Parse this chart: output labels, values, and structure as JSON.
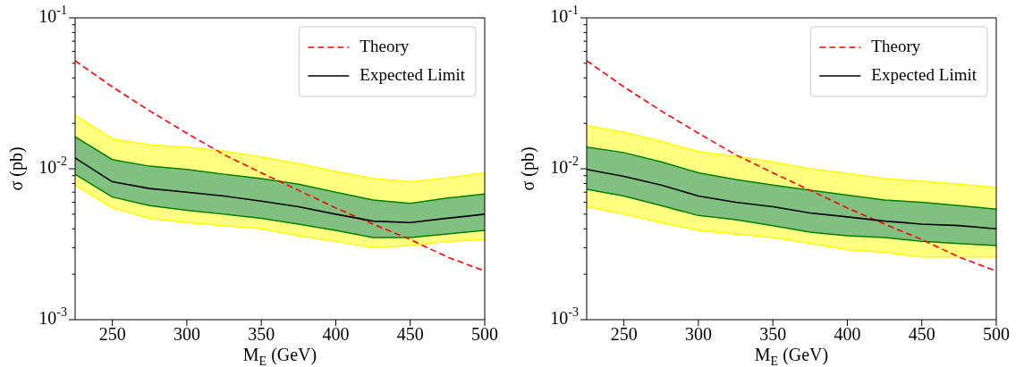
{
  "chart_data": [
    {
      "type": "line",
      "xlabel": "M$_{E}$ (GeV)",
      "ylabel": "σ (pb)",
      "log": "y",
      "legend": "top right",
      "x": [
        225,
        250,
        275,
        300,
        325,
        350,
        375,
        400,
        425,
        450,
        475,
        500
      ],
      "xlim": [
        225,
        500
      ],
      "xticks": [
        250,
        300,
        350,
        400,
        450,
        500
      ],
      "ylim": [
        0.001,
        0.1
      ],
      "yticks": [
        {
          "value": 0.001,
          "label": "10$^{-3}$"
        },
        {
          "value": 0.002,
          "label": null
        },
        {
          "value": 0.003,
          "label": null
        },
        {
          "value": 0.004,
          "label": null
        },
        {
          "value": 0.005,
          "label": null
        },
        {
          "value": 0.006,
          "label": null
        },
        {
          "value": 0.007,
          "label": null
        },
        {
          "value": 0.008,
          "label": null
        },
        {
          "value": 0.009,
          "label": null
        },
        {
          "value": 0.01,
          "label": "10$^{-2}$"
        },
        {
          "value": 0.02,
          "label": null
        },
        {
          "value": 0.03,
          "label": null
        },
        {
          "value": 0.04,
          "label": null
        },
        {
          "value": 0.05,
          "label": null
        },
        {
          "value": 0.06,
          "label": null
        },
        {
          "value": 0.07,
          "label": null
        },
        {
          "value": 0.08,
          "label": null
        },
        {
          "value": 0.09,
          "label": null
        },
        {
          "value": 0.1,
          "label": "10$^{-1}$"
        }
      ],
      "series": [
        {
          "type": "area",
          "color": "#ffff00",
          "values": [
            0.0228,
            0.0158,
            0.0144,
            0.0139,
            0.0131,
            0.012,
            0.0108,
            0.0096,
            0.0086,
            0.0082,
            0.0087,
            0.0094
          ]
        },
        {
          "type": "line",
          "color": "#ffff00",
          "values": [
            0.0078,
            0.0055,
            0.0047,
            0.0044,
            0.0042,
            0.004,
            0.0036,
            0.0033,
            0.003,
            0.0031,
            0.0033,
            0.0034
          ]
        },
        {
          "type": "area",
          "color": "#008000",
          "values": [
            0.0163,
            0.0115,
            0.0104,
            0.0099,
            0.0092,
            0.0086,
            0.0079,
            0.007,
            0.0062,
            0.0059,
            0.0064,
            0.0068
          ]
        },
        {
          "type": "line",
          "color": "#008000",
          "values": [
            0.0092,
            0.0065,
            0.0057,
            0.0053,
            0.005,
            0.0047,
            0.0043,
            0.0039,
            0.0035,
            0.0035,
            0.0037,
            0.0039
          ]
        },
        {
          "type": "line",
          "name": "Theory",
          "color": "#ff0000",
          "line_style": "dashed",
          "values": [
            0.052,
            0.0349,
            0.0242,
            0.0172,
            0.0124,
            0.0094,
            0.0072,
            0.0055,
            0.0043,
            0.0034,
            0.0026,
            0.0021
          ]
        },
        {
          "type": "line",
          "name": "Expected Limit",
          "color": "#000000",
          "line_style": "solid",
          "values": [
            0.0118,
            0.0082,
            0.0074,
            0.007,
            0.0066,
            0.0061,
            0.0056,
            0.005,
            0.0045,
            0.0044,
            0.0047,
            0.005
          ]
        }
      ]
    },
    {
      "type": "line",
      "xlabel": "M$_{E}$ (GeV)",
      "ylabel": "σ (pb)",
      "log": "y",
      "legend": "top right",
      "x": [
        225,
        250,
        275,
        300,
        325,
        350,
        375,
        400,
        425,
        450,
        475,
        500
      ],
      "xlim": [
        225,
        500
      ],
      "xticks": [
        250,
        300,
        350,
        400,
        450,
        500
      ],
      "ylim": [
        0.001,
        0.1
      ],
      "yticks": [
        {
          "value": 0.001,
          "label": "10$^{-3}$"
        },
        {
          "value": 0.002,
          "label": null
        },
        {
          "value": 0.003,
          "label": null
        },
        {
          "value": 0.004,
          "label": null
        },
        {
          "value": 0.005,
          "label": null
        },
        {
          "value": 0.006,
          "label": null
        },
        {
          "value": 0.007,
          "label": null
        },
        {
          "value": 0.008,
          "label": null
        },
        {
          "value": 0.009,
          "label": null
        },
        {
          "value": 0.01,
          "label": "10$^{-2}$"
        },
        {
          "value": 0.02,
          "label": null
        },
        {
          "value": 0.03,
          "label": null
        },
        {
          "value": 0.04,
          "label": null
        },
        {
          "value": 0.05,
          "label": null
        },
        {
          "value": 0.06,
          "label": null
        },
        {
          "value": 0.07,
          "label": null
        },
        {
          "value": 0.08,
          "label": null
        },
        {
          "value": 0.09,
          "label": null
        },
        {
          "value": 0.1,
          "label": "10$^{-1}$"
        }
      ],
      "series": [
        {
          "type": "area",
          "color": "#ffff00",
          "values": [
            0.0193,
            0.0175,
            0.0152,
            0.013,
            0.0121,
            0.0111,
            0.01,
            0.0093,
            0.0086,
            0.0083,
            0.0079,
            0.0075
          ]
        },
        {
          "type": "line",
          "color": "#ffff00",
          "values": [
            0.0056,
            0.005,
            0.0044,
            0.0039,
            0.0037,
            0.0035,
            0.0032,
            0.0029,
            0.0028,
            0.0026,
            0.0026,
            0.0026
          ]
        },
        {
          "type": "area",
          "color": "#008000",
          "values": [
            0.0139,
            0.0128,
            0.0111,
            0.0094,
            0.0085,
            0.0078,
            0.0072,
            0.0067,
            0.0062,
            0.006,
            0.0057,
            0.0054
          ]
        },
        {
          "type": "line",
          "color": "#008000",
          "values": [
            0.0073,
            0.0066,
            0.0057,
            0.0049,
            0.0046,
            0.0042,
            0.0038,
            0.0036,
            0.0035,
            0.0033,
            0.0032,
            0.0031
          ]
        },
        {
          "type": "line",
          "name": "Theory",
          "color": "#ff0000",
          "line_style": "dashed",
          "values": [
            0.052,
            0.0349,
            0.0242,
            0.0172,
            0.0124,
            0.0094,
            0.0072,
            0.0055,
            0.0043,
            0.0034,
            0.0026,
            0.0021
          ]
        },
        {
          "type": "line",
          "name": "Expected Limit",
          "color": "#000000",
          "line_style": "solid",
          "values": [
            0.0099,
            0.0089,
            0.0078,
            0.0066,
            0.006,
            0.0056,
            0.0051,
            0.0048,
            0.0045,
            0.0043,
            0.0042,
            0.004
          ]
        }
      ]
    }
  ]
}
